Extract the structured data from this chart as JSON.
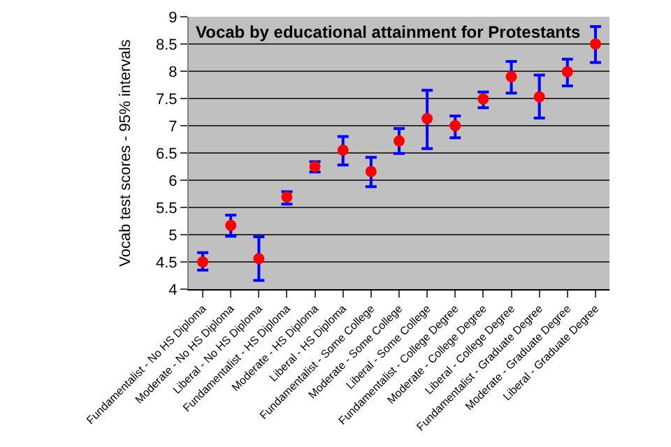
{
  "chart_data": {
    "type": "scatter",
    "title": "Vocab by educational attainment for Protestants",
    "ylabel": "Vocab test scores - 95% intervals",
    "categories": [
      "Fundamentalist - No HS Diploma",
      "Moderate - No HS Diploma",
      "Liberal - No HS Diploma",
      "Fundamentalist - HS Diploma",
      "Moderate - HS Diploma",
      "Liberal - HS Diploma",
      "Fundamentalist - Some College",
      "Moderate - Some College",
      "Liberal - Some College",
      "Fundamentalist - College Degree",
      "Moderate - College Degree",
      "Liberal - College Degree",
      "Fundamentalist - Graduate Degree",
      "Moderate - Graduate Degree",
      "Liberal - Graduate Degree"
    ],
    "series": [
      {
        "color": "#ff0000",
        "values": [
          4.5,
          5.17,
          4.56,
          5.69,
          6.25,
          6.55,
          6.16,
          6.72,
          7.13,
          7.0,
          7.49,
          7.9,
          7.53,
          7.99,
          8.5
        ],
        "errors": [
          [
            4.35,
            4.67
          ],
          [
            4.97,
            5.36
          ],
          [
            4.16,
            4.96
          ],
          [
            5.56,
            5.79
          ],
          [
            6.15,
            6.34
          ],
          [
            6.28,
            6.8
          ],
          [
            5.88,
            6.42
          ],
          [
            6.49,
            6.95
          ],
          [
            6.58,
            7.65
          ],
          [
            6.78,
            7.18
          ],
          [
            7.33,
            7.62
          ],
          [
            7.6,
            8.18
          ],
          [
            7.14,
            7.93
          ],
          [
            7.73,
            8.22
          ],
          [
            8.16,
            8.82
          ]
        ]
      }
    ],
    "ylim": [
      4,
      9
    ],
    "yticks": [
      4,
      4.5,
      5,
      5.5,
      6,
      6.5,
      7,
      7.5,
      8,
      8.5,
      9
    ],
    "grid": "y",
    "marker": "circle"
  }
}
